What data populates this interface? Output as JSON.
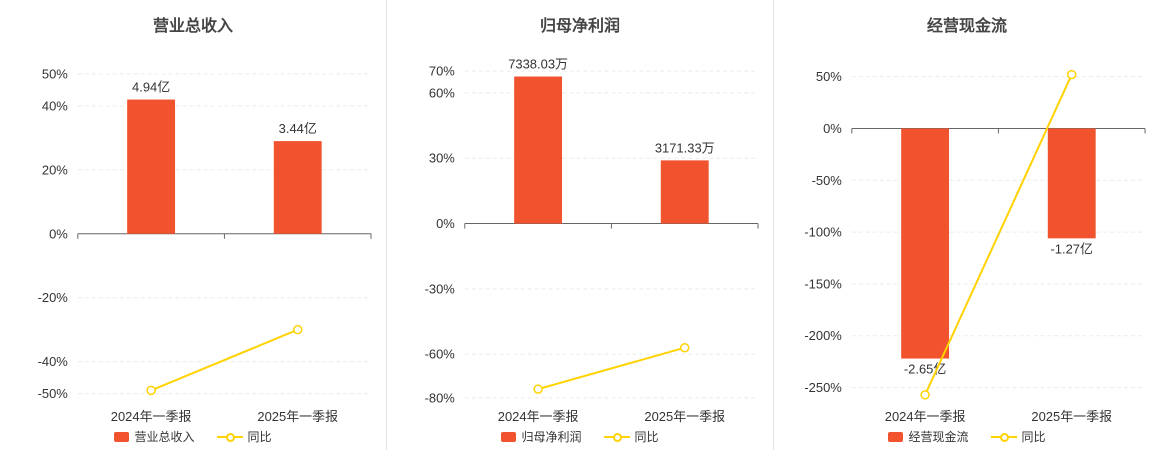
{
  "colors": {
    "bar": "#f0532e",
    "line": "#ffd200",
    "axis": "#666666",
    "grid": "#ebebeb",
    "text": "#333333",
    "title": "#454545"
  },
  "chart_data": [
    {
      "type": "bar+line",
      "title": "营业总收入",
      "categories": [
        "2024年一季报",
        "2025年一季报"
      ],
      "bar_series": {
        "name": "营业总收入",
        "labels": [
          "4.94亿",
          "3.44亿"
        ],
        "plot_pct": [
          42,
          29
        ]
      },
      "line_series": {
        "name": "同比",
        "values_pct": [
          -49,
          -30
        ]
      },
      "yticks": [
        50,
        40,
        20,
        0,
        -20,
        -40,
        -50
      ],
      "ylim": [
        -52,
        55
      ],
      "grid": "dashed",
      "legend_position": "bottom"
    },
    {
      "type": "bar+line",
      "title": "归母净利润",
      "categories": [
        "2024年一季报",
        "2025年一季报"
      ],
      "bar_series": {
        "name": "归母净利润",
        "labels": [
          "7338.03万",
          "3171.33万"
        ],
        "plot_pct": [
          67.5,
          29
        ]
      },
      "line_series": {
        "name": "同比",
        "values_pct": [
          -76,
          -57
        ]
      },
      "yticks": [
        70,
        60,
        30,
        0,
        -30,
        -60,
        -80
      ],
      "ylim": [
        -81,
        76
      ],
      "grid": "dashed",
      "legend_position": "bottom"
    },
    {
      "type": "bar+line",
      "title": "经营现金流",
      "categories": [
        "2024年一季报",
        "2025年一季报"
      ],
      "bar_series": {
        "name": "经营现金流",
        "labels": [
          "-2.65亿",
          "-1.27亿"
        ],
        "plot_pct": [
          -222,
          -106
        ]
      },
      "line_series": {
        "name": "同比",
        "values_pct": [
          -257,
          52
        ]
      },
      "yticks": [
        50,
        0,
        -50,
        -100,
        -150,
        -200,
        -250
      ],
      "ylim": [
        -262,
        68
      ],
      "grid": "dashed",
      "legend_position": "bottom"
    }
  ]
}
